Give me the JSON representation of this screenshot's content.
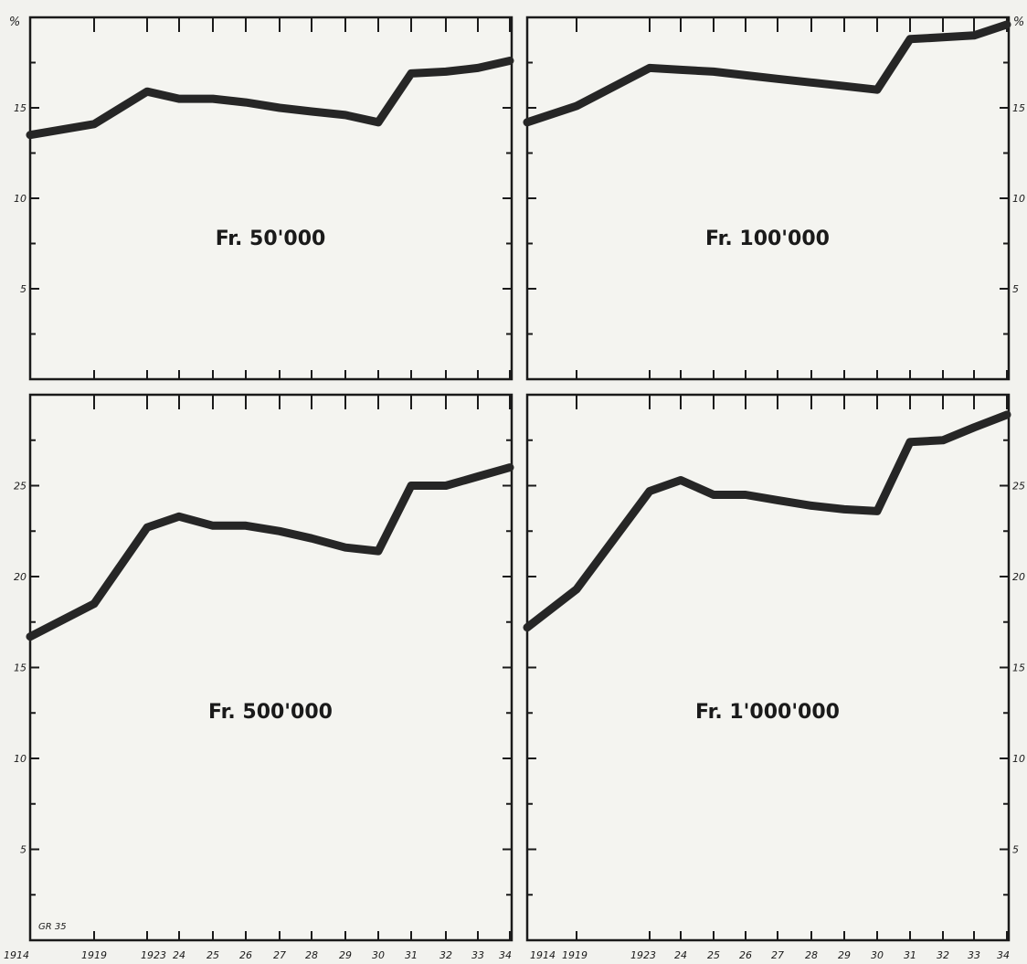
{
  "chart_data": [
    {
      "type": "line",
      "title": "Fr. 50'000",
      "ylim": [
        0,
        20
      ],
      "yticks": [
        "5",
        "10",
        "15"
      ],
      "y_unit": "%",
      "x": [
        1914,
        1919,
        1923,
        1924,
        1925,
        1926,
        1927,
        1928,
        1929,
        1930,
        1931,
        1932,
        1933,
        1934
      ],
      "values": [
        13.5,
        14.1,
        15.9,
        15.5,
        15.5,
        15.3,
        15.0,
        14.8,
        14.6,
        14.2,
        16.9,
        17.0,
        17.2,
        17.6
      ]
    },
    {
      "type": "line",
      "title": "Fr. 100'000",
      "ylim": [
        0,
        20
      ],
      "yticks": [
        "5",
        "10",
        "15"
      ],
      "y_unit": "%",
      "x": [
        1914,
        1919,
        1923,
        1924,
        1925,
        1926,
        1927,
        1928,
        1929,
        1930,
        1931,
        1932,
        1933,
        1934
      ],
      "values": [
        14.2,
        15.1,
        17.2,
        17.1,
        17.0,
        16.8,
        16.6,
        16.4,
        16.2,
        16.0,
        18.8,
        18.9,
        19.0,
        19.6
      ]
    },
    {
      "type": "line",
      "title": "Fr. 500'000",
      "ylim": [
        0,
        30
      ],
      "yticks": [
        "5",
        "10",
        "15",
        "20",
        "25"
      ],
      "x": [
        1914,
        1919,
        1923,
        1924,
        1925,
        1926,
        1927,
        1928,
        1929,
        1930,
        1931,
        1932,
        1933,
        1934
      ],
      "values": [
        16.7,
        18.5,
        22.7,
        23.3,
        22.8,
        22.8,
        22.5,
        22.1,
        21.6,
        21.4,
        25.0,
        25.0,
        25.5,
        26.0
      ]
    },
    {
      "type": "line",
      "title": "Fr. 1'000'000",
      "ylim": [
        0,
        30
      ],
      "yticks": [
        "5",
        "10",
        "15",
        "20",
        "25"
      ],
      "x": [
        1914,
        1919,
        1923,
        1924,
        1925,
        1926,
        1927,
        1928,
        1929,
        1930,
        1931,
        1932,
        1933,
        1934
      ],
      "values": [
        17.2,
        19.3,
        24.7,
        25.3,
        24.5,
        24.5,
        24.2,
        23.9,
        23.7,
        23.6,
        27.4,
        27.5,
        28.2,
        28.9
      ]
    }
  ],
  "x_axis": {
    "left_labels": [
      "1914",
      "1919",
      "1923",
      "24",
      "25",
      "26",
      "27",
      "28",
      "29",
      "30",
      "31",
      "32",
      "33",
      "34"
    ],
    "right_labels": [
      "1914",
      "1919",
      "1923",
      "24",
      "25",
      "26",
      "27",
      "28",
      "29",
      "30",
      "31",
      "32",
      "33",
      "34"
    ]
  },
  "credit": "GR 35"
}
